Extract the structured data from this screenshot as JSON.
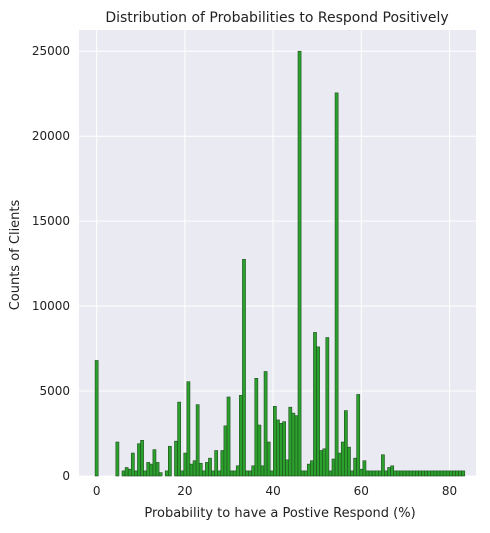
{
  "chart_data": {
    "type": "bar",
    "title": "Distribution of Probabilities to Respond Positively",
    "xlabel": "Probability to have a Postive Respond (%)",
    "ylabel": "Counts of Clients",
    "x_ticks": [
      0,
      20,
      40,
      60,
      80
    ],
    "y_ticks": [
      0,
      5000,
      10000,
      15000,
      20000,
      25000
    ],
    "xlim": [
      -4,
      86
    ],
    "ylim": [
      0,
      26250
    ],
    "bin_width": 0.7,
    "grid": true,
    "style": "seaborn darkgrid",
    "bar_color": "#2ca02c",
    "bar_edge_color": "#1f4f1f",
    "x": [
      0.0,
      4.7,
      6.1,
      6.8,
      7.5,
      8.2,
      8.9,
      9.6,
      10.3,
      11.0,
      11.7,
      12.4,
      13.1,
      13.8,
      14.5,
      15.2,
      15.9,
      16.6,
      17.3,
      18.0,
      18.7,
      19.4,
      20.1,
      20.8,
      21.5,
      22.2,
      22.9,
      23.6,
      24.3,
      25.0,
      25.7,
      26.4,
      27.1,
      27.8,
      28.5,
      29.2,
      29.9,
      30.6,
      31.3,
      32.0,
      32.7,
      33.4,
      34.1,
      34.8,
      35.5,
      36.2,
      36.9,
      37.6,
      38.3,
      39.0,
      39.7,
      40.4,
      41.1,
      41.8,
      42.5,
      43.2,
      43.9,
      44.6,
      45.3,
      46.0,
      46.7,
      47.4,
      48.1,
      48.8,
      49.5,
      50.2,
      50.9,
      51.6,
      52.3,
      53.0,
      53.7,
      54.4,
      55.1,
      55.8,
      56.5,
      57.2,
      57.9,
      58.6,
      59.3,
      60.0,
      60.7,
      61.4,
      62.1,
      62.8,
      63.5,
      64.2,
      64.9,
      65.6,
      66.3,
      67.0,
      67.7,
      68.4,
      69.1,
      69.8,
      70.5,
      71.2,
      71.9,
      72.6,
      73.3,
      74.0,
      74.7,
      75.4,
      76.1,
      76.8,
      77.5,
      78.2,
      78.9,
      79.6,
      80.3,
      81.0,
      81.7,
      82.4,
      83.1
    ],
    "values": [
      6800,
      2000,
      300,
      500,
      400,
      1350,
      300,
      1900,
      2100,
      300,
      800,
      700,
      1550,
      800,
      200,
      0,
      300,
      1750,
      0,
      2050,
      4350,
      300,
      1350,
      5550,
      700,
      900,
      4200,
      750,
      300,
      800,
      1050,
      300,
      1500,
      300,
      1500,
      2950,
      4650,
      300,
      300,
      600,
      4750,
      12750,
      300,
      300,
      600,
      5750,
      3000,
      600,
      6150,
      2000,
      300,
      4100,
      3300,
      3100,
      3200,
      950,
      4050,
      3700,
      3550,
      25000,
      300,
      300,
      700,
      900,
      8450,
      7600,
      1500,
      1600,
      8150,
      300,
      1000,
      22550,
      1350,
      2000,
      3850,
      1700,
      300,
      1050,
      4800,
      400,
      900,
      300,
      300,
      300,
      300,
      300,
      1250,
      300,
      500,
      600,
      300,
      300,
      300,
      300,
      300,
      300,
      300,
      300,
      300,
      300,
      300,
      300,
      300,
      300,
      300,
      300,
      300,
      300,
      300,
      300,
      300,
      300,
      300
    ]
  }
}
